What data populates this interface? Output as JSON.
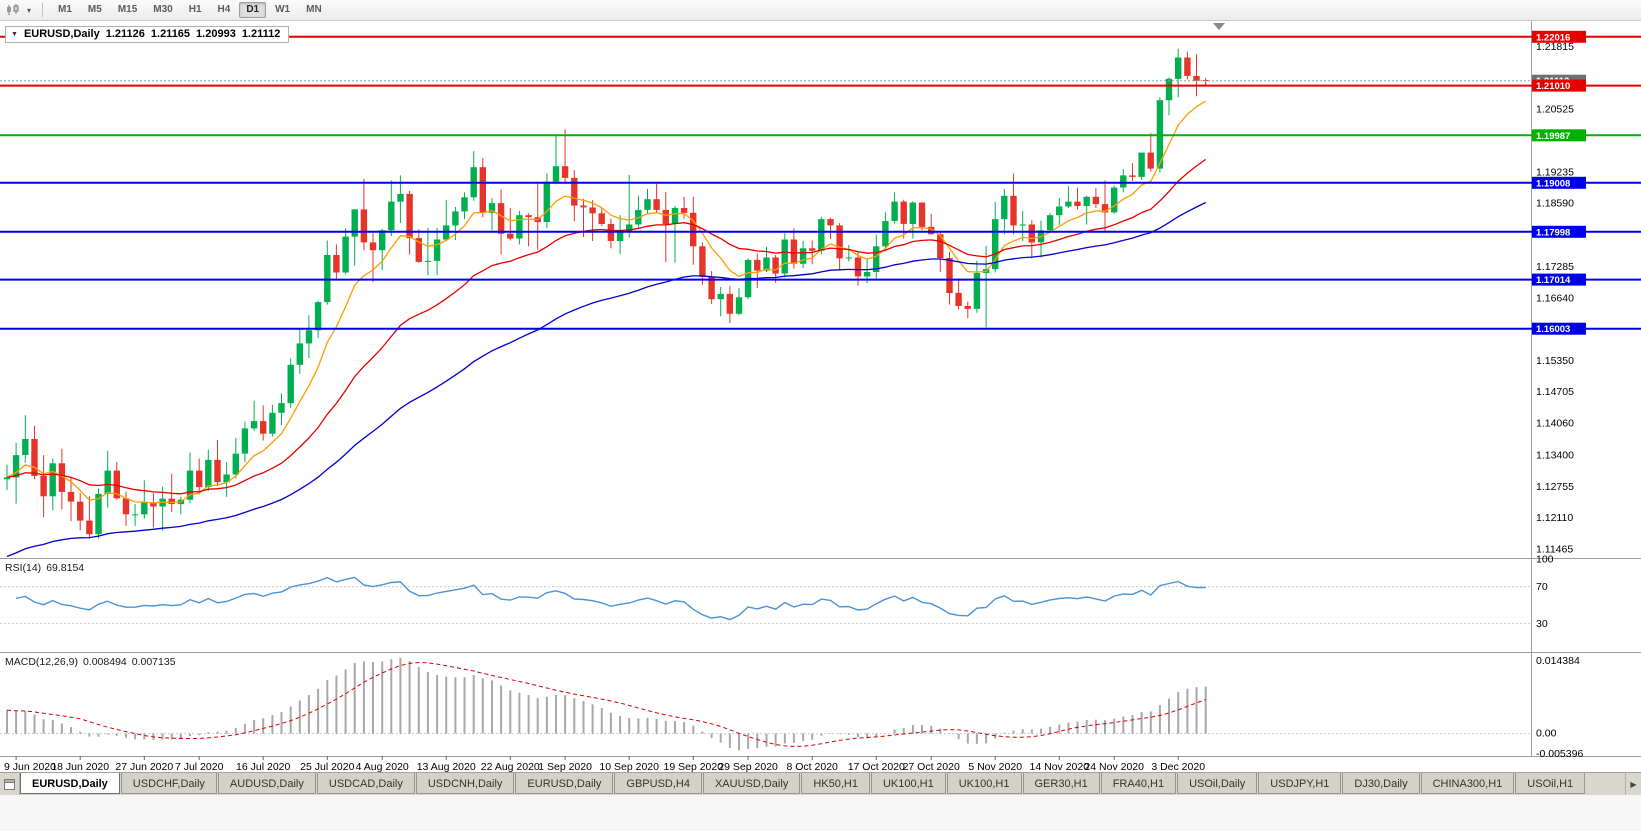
{
  "icons": {
    "chart_type_dropdown": "▾",
    "quote_expand": "▼",
    "tab_scroll_right": "▶"
  },
  "toolbar": {
    "timeframes": [
      "M1",
      "M5",
      "M15",
      "M30",
      "H1",
      "H4",
      "D1",
      "W1",
      "MN"
    ],
    "active_timeframe": "D1"
  },
  "chart": {
    "title": {
      "symbol": "EURUSD,Daily",
      "open": "1.21126",
      "high": "1.21165",
      "low": "1.20993",
      "close": "1.21112"
    },
    "price_axis_ticks": [
      "1.21815",
      "1.20525",
      "1.19235",
      "1.18590",
      "1.17285",
      "1.16640",
      "1.15350",
      "1.14705",
      "1.14060",
      "1.13400",
      "1.12755",
      "1.12110",
      "1.11465"
    ],
    "levels": [
      {
        "price": 1.22016,
        "label": "1.22016",
        "color": "#e60000"
      },
      {
        "price": 1.2101,
        "label": "1.21010",
        "color": "#e60000"
      },
      {
        "price": 1.19987,
        "label": "1.19987",
        "color": "#00b200"
      },
      {
        "price": 1.19008,
        "label": "1.19008",
        "color": "#0000e6"
      },
      {
        "price": 1.17998,
        "label": "1.17998",
        "color": "#0000e6"
      },
      {
        "price": 1.17014,
        "label": "1.17014",
        "color": "#0000e6"
      },
      {
        "price": 1.16003,
        "label": "1.16003",
        "color": "#0000e6"
      }
    ],
    "bid_price": {
      "value": 1.21112,
      "label": "1.21112",
      "color": "#6b7075"
    }
  },
  "chart_data": {
    "type": "candlestick",
    "symbol": "EURUSD",
    "period": "Daily",
    "price_range": [
      1.113,
      1.223
    ],
    "moving_averages": [
      {
        "name": "ma-fast",
        "period": 8,
        "color": "#ff9c00"
      },
      {
        "name": "ma-medium",
        "period": 25,
        "color": "#e60000"
      },
      {
        "name": "ma-slow",
        "period": 55,
        "seed": 1.1125,
        "color": "#0000cc"
      }
    ],
    "candles": [
      [
        1.129,
        1.132,
        1.1268,
        1.1294
      ],
      [
        1.1294,
        1.1365,
        1.124,
        1.134
      ],
      [
        1.134,
        1.1422,
        1.1324,
        1.1373
      ],
      [
        1.1373,
        1.14,
        1.129,
        1.1297
      ],
      [
        1.1297,
        1.134,
        1.1212,
        1.1255
      ],
      [
        1.1255,
        1.1333,
        1.1226,
        1.1323
      ],
      [
        1.1323,
        1.1353,
        1.1228,
        1.1264
      ],
      [
        1.1264,
        1.1295,
        1.1204,
        1.1244
      ],
      [
        1.1244,
        1.1262,
        1.1185,
        1.1205
      ],
      [
        1.1205,
        1.1255,
        1.1168,
        1.1177
      ],
      [
        1.1177,
        1.1271,
        1.1168,
        1.126
      ],
      [
        1.126,
        1.1349,
        1.1232,
        1.1308
      ],
      [
        1.1308,
        1.1326,
        1.1248,
        1.1251
      ],
      [
        1.1251,
        1.1265,
        1.1194,
        1.1218
      ],
      [
        1.1218,
        1.1239,
        1.1194,
        1.1218
      ],
      [
        1.1218,
        1.1288,
        1.1209,
        1.1242
      ],
      [
        1.1242,
        1.1262,
        1.1191,
        1.1234
      ],
      [
        1.1234,
        1.1275,
        1.1184,
        1.125
      ],
      [
        1.125,
        1.1302,
        1.1223,
        1.1239
      ],
      [
        1.1239,
        1.1254,
        1.1218,
        1.1248
      ],
      [
        1.1248,
        1.1345,
        1.1241,
        1.1308
      ],
      [
        1.1308,
        1.1333,
        1.1259,
        1.1274
      ],
      [
        1.1274,
        1.1351,
        1.1266,
        1.133
      ],
      [
        1.133,
        1.1371,
        1.1276,
        1.1284
      ],
      [
        1.1284,
        1.1325,
        1.1254,
        1.13
      ],
      [
        1.13,
        1.1375,
        1.1292,
        1.1343
      ],
      [
        1.1343,
        1.1409,
        1.1325,
        1.1395
      ],
      [
        1.1395,
        1.1452,
        1.139,
        1.141
      ],
      [
        1.141,
        1.1442,
        1.137,
        1.1384
      ],
      [
        1.1384,
        1.1444,
        1.1378,
        1.1427
      ],
      [
        1.1427,
        1.1467,
        1.1402,
        1.1447
      ],
      [
        1.1447,
        1.1539,
        1.1437,
        1.1526
      ],
      [
        1.1526,
        1.1601,
        1.1507,
        1.157
      ],
      [
        1.157,
        1.1628,
        1.154,
        1.1597
      ],
      [
        1.1597,
        1.1658,
        1.1581,
        1.1655
      ],
      [
        1.1655,
        1.1782,
        1.165,
        1.1752
      ],
      [
        1.1752,
        1.1774,
        1.17,
        1.1716
      ],
      [
        1.1716,
        1.1807,
        1.1712,
        1.179
      ],
      [
        1.179,
        1.1847,
        1.173,
        1.1846
      ],
      [
        1.1846,
        1.1909,
        1.1762,
        1.1778
      ],
      [
        1.1778,
        1.1797,
        1.1696,
        1.1762
      ],
      [
        1.1762,
        1.1806,
        1.1721,
        1.1803
      ],
      [
        1.1803,
        1.1906,
        1.1791,
        1.1862
      ],
      [
        1.1862,
        1.1916,
        1.1818,
        1.1878
      ],
      [
        1.1878,
        1.1884,
        1.1753,
        1.1787
      ],
      [
        1.1787,
        1.1805,
        1.1736,
        1.1738
      ],
      [
        1.1738,
        1.1808,
        1.1711,
        1.174
      ],
      [
        1.174,
        1.1808,
        1.1711,
        1.1784
      ],
      [
        1.1784,
        1.1865,
        1.1781,
        1.1813
      ],
      [
        1.1813,
        1.1851,
        1.1783,
        1.1842
      ],
      [
        1.1842,
        1.1881,
        1.1826,
        1.1871
      ],
      [
        1.1871,
        1.1966,
        1.1864,
        1.1933
      ],
      [
        1.1933,
        1.1952,
        1.183,
        1.1839
      ],
      [
        1.1839,
        1.1869,
        1.1803,
        1.1859
      ],
      [
        1.1859,
        1.1887,
        1.1753,
        1.1796
      ],
      [
        1.1796,
        1.1849,
        1.1782,
        1.1786
      ],
      [
        1.1786,
        1.1843,
        1.1774,
        1.1834
      ],
      [
        1.1834,
        1.1838,
        1.177,
        1.183
      ],
      [
        1.183,
        1.1902,
        1.1763,
        1.182
      ],
      [
        1.182,
        1.192,
        1.1807,
        1.1903
      ],
      [
        1.1903,
        1.1998,
        1.1898,
        1.1935
      ],
      [
        1.1935,
        1.2011,
        1.1898,
        1.1911
      ],
      [
        1.1911,
        1.1927,
        1.1822,
        1.1854
      ],
      [
        1.1854,
        1.1868,
        1.1789,
        1.185
      ],
      [
        1.185,
        1.1865,
        1.1781,
        1.1838
      ],
      [
        1.1838,
        1.1848,
        1.1812,
        1.1816
      ],
      [
        1.1816,
        1.1827,
        1.1766,
        1.1781
      ],
      [
        1.1781,
        1.1834,
        1.1754,
        1.1801
      ],
      [
        1.1801,
        1.1917,
        1.1788,
        1.1815
      ],
      [
        1.1815,
        1.1874,
        1.1809,
        1.1845
      ],
      [
        1.1845,
        1.1888,
        1.1838,
        1.1867
      ],
      [
        1.1867,
        1.1899,
        1.1838,
        1.1845
      ],
      [
        1.1845,
        1.1882,
        1.1737,
        1.1816
      ],
      [
        1.1816,
        1.1853,
        1.1736,
        1.1849
      ],
      [
        1.1849,
        1.1872,
        1.1827,
        1.1839
      ],
      [
        1.1839,
        1.1872,
        1.1732,
        1.177
      ],
      [
        1.177,
        1.1778,
        1.1691,
        1.1707
      ],
      [
        1.1707,
        1.1719,
        1.1651,
        1.1661
      ],
      [
        1.1661,
        1.1686,
        1.1626,
        1.1672
      ],
      [
        1.1672,
        1.1688,
        1.1612,
        1.1631
      ],
      [
        1.1631,
        1.1684,
        1.1628,
        1.1665
      ],
      [
        1.1665,
        1.1745,
        1.1661,
        1.1742
      ],
      [
        1.1742,
        1.1755,
        1.1684,
        1.172
      ],
      [
        1.172,
        1.1769,
        1.1717,
        1.1747
      ],
      [
        1.1747,
        1.1752,
        1.1695,
        1.1714
      ],
      [
        1.1714,
        1.1797,
        1.1706,
        1.1784
      ],
      [
        1.1784,
        1.1807,
        1.1724,
        1.1734
      ],
      [
        1.1734,
        1.1781,
        1.1725,
        1.1766
      ],
      [
        1.1766,
        1.1782,
        1.1733,
        1.1761
      ],
      [
        1.1761,
        1.1831,
        1.1754,
        1.1826
      ],
      [
        1.1826,
        1.1829,
        1.1785,
        1.1813
      ],
      [
        1.1813,
        1.1818,
        1.1721,
        1.1745
      ],
      [
        1.1745,
        1.1773,
        1.1739,
        1.1747
      ],
      [
        1.1747,
        1.1758,
        1.1689,
        1.1708
      ],
      [
        1.1708,
        1.1746,
        1.1694,
        1.1717
      ],
      [
        1.1717,
        1.1794,
        1.1703,
        1.177
      ],
      [
        1.177,
        1.184,
        1.176,
        1.1822
      ],
      [
        1.1822,
        1.1881,
        1.1817,
        1.1862
      ],
      [
        1.1862,
        1.1866,
        1.1786,
        1.1816
      ],
      [
        1.1816,
        1.1863,
        1.1786,
        1.186
      ],
      [
        1.186,
        1.1861,
        1.1803,
        1.181
      ],
      [
        1.181,
        1.1837,
        1.1794,
        1.1795
      ],
      [
        1.1795,
        1.18,
        1.1717,
        1.1746
      ],
      [
        1.1746,
        1.1759,
        1.165,
        1.1674
      ],
      [
        1.1674,
        1.1704,
        1.164,
        1.1647
      ],
      [
        1.1647,
        1.1656,
        1.1622,
        1.1641
      ],
      [
        1.1641,
        1.174,
        1.1633,
        1.1715
      ],
      [
        1.1715,
        1.1771,
        1.1603,
        1.1723
      ],
      [
        1.1723,
        1.1861,
        1.1716,
        1.1826
      ],
      [
        1.1826,
        1.1888,
        1.1795,
        1.1874
      ],
      [
        1.1874,
        1.192,
        1.1795,
        1.1813
      ],
      [
        1.1813,
        1.1843,
        1.1781,
        1.1815
      ],
      [
        1.1815,
        1.1824,
        1.1745,
        1.1778
      ],
      [
        1.1778,
        1.1823,
        1.1747,
        1.1803
      ],
      [
        1.1803,
        1.1838,
        1.1799,
        1.1834
      ],
      [
        1.1834,
        1.1869,
        1.1814,
        1.1852
      ],
      [
        1.1852,
        1.1894,
        1.1849,
        1.1862
      ],
      [
        1.1862,
        1.1891,
        1.1846,
        1.1853
      ],
      [
        1.1853,
        1.1874,
        1.1815,
        1.1872
      ],
      [
        1.1872,
        1.189,
        1.1849,
        1.1857
      ],
      [
        1.1857,
        1.1906,
        1.18,
        1.184
      ],
      [
        1.184,
        1.1895,
        1.1837,
        1.1891
      ],
      [
        1.1891,
        1.1929,
        1.1881,
        1.1916
      ],
      [
        1.1916,
        1.1941,
        1.1905,
        1.1913
      ],
      [
        1.1913,
        1.1963,
        1.1907,
        1.1963
      ],
      [
        1.1963,
        1.2003,
        1.1924,
        1.193
      ],
      [
        1.193,
        1.2077,
        1.1922,
        1.2071
      ],
      [
        1.2071,
        1.2118,
        1.204,
        1.2115
      ],
      [
        1.2115,
        1.2177,
        1.2077,
        1.2159
      ],
      [
        1.2159,
        1.2171,
        1.2114,
        1.2121
      ],
      [
        1.2121,
        1.2166,
        1.2079,
        1.2111
      ],
      [
        1.21126,
        1.21165,
        1.20993,
        1.21112
      ]
    ],
    "date_labels": [
      {
        "i": 1,
        "t": "9 Jun 2020"
      },
      {
        "i": 8,
        "t": "18 Jun 2020"
      },
      {
        "i": 15,
        "t": "27 Jun 2020"
      },
      {
        "i": 21,
        "t": "7 Jul 2020"
      },
      {
        "i": 28,
        "t": "16 Jul 2020"
      },
      {
        "i": 35,
        "t": "25 Jul 2020"
      },
      {
        "i": 41,
        "t": "4 Aug 2020"
      },
      {
        "i": 48,
        "t": "13 Aug 2020"
      },
      {
        "i": 55,
        "t": "22 Aug 2020"
      },
      {
        "i": 61,
        "t": "1 Sep 2020"
      },
      {
        "i": 68,
        "t": "10 Sep 2020"
      },
      {
        "i": 75,
        "t": "19 Sep 2020"
      },
      {
        "i": 81,
        "t": "29 Sep 2020"
      },
      {
        "i": 88,
        "t": "8 Oct 2020"
      },
      {
        "i": 95,
        "t": "17 Oct 2020"
      },
      {
        "i": 101,
        "t": "27 Oct 2020"
      },
      {
        "i": 108,
        "t": "5 Nov 2020"
      },
      {
        "i": 115,
        "t": "14 Nov 2020"
      },
      {
        "i": 121,
        "t": "24 Nov 2020"
      },
      {
        "i": 128,
        "t": "3 Dec 2020"
      }
    ]
  },
  "rsi": {
    "name": "RSI(14)",
    "value": "69.8154",
    "period": 14,
    "axis_labels": [
      "100",
      "70",
      "30"
    ],
    "levels": [
      70,
      30
    ],
    "color": "#4a93d6"
  },
  "macd": {
    "name": "MACD(12,26,9)",
    "value_macd": "0.008494",
    "value_signal": "0.007135",
    "fast": 12,
    "slow": 26,
    "signal": 9,
    "axis_labels": [
      "0.014384",
      "0.00",
      "-0.005396"
    ]
  },
  "bottom_tabs": {
    "active": 0,
    "items": [
      "EURUSD,Daily",
      "USDCHF,Daily",
      "AUDUSD,Daily",
      "USDCAD,Daily",
      "USDCNH,Daily",
      "EURUSD,Daily",
      "GBPUSD,H4",
      "XAUUSD,Daily",
      "HK50,H1",
      "UK100,H1",
      "UK100,H1",
      "GER30,H1",
      "FRA40,H1",
      "USOil,Daily",
      "USDJPY,H1",
      "DJ30,Daily",
      "CHINA300,H1",
      "USOil,H1"
    ]
  },
  "colors": {
    "up": "#00b050",
    "down": "#e5352b",
    "macd_hist": "#a8a8a8",
    "macd_signal": "#d40000",
    "grid_dashed": "#c9c9c9",
    "frame": "#9c9c9c"
  }
}
